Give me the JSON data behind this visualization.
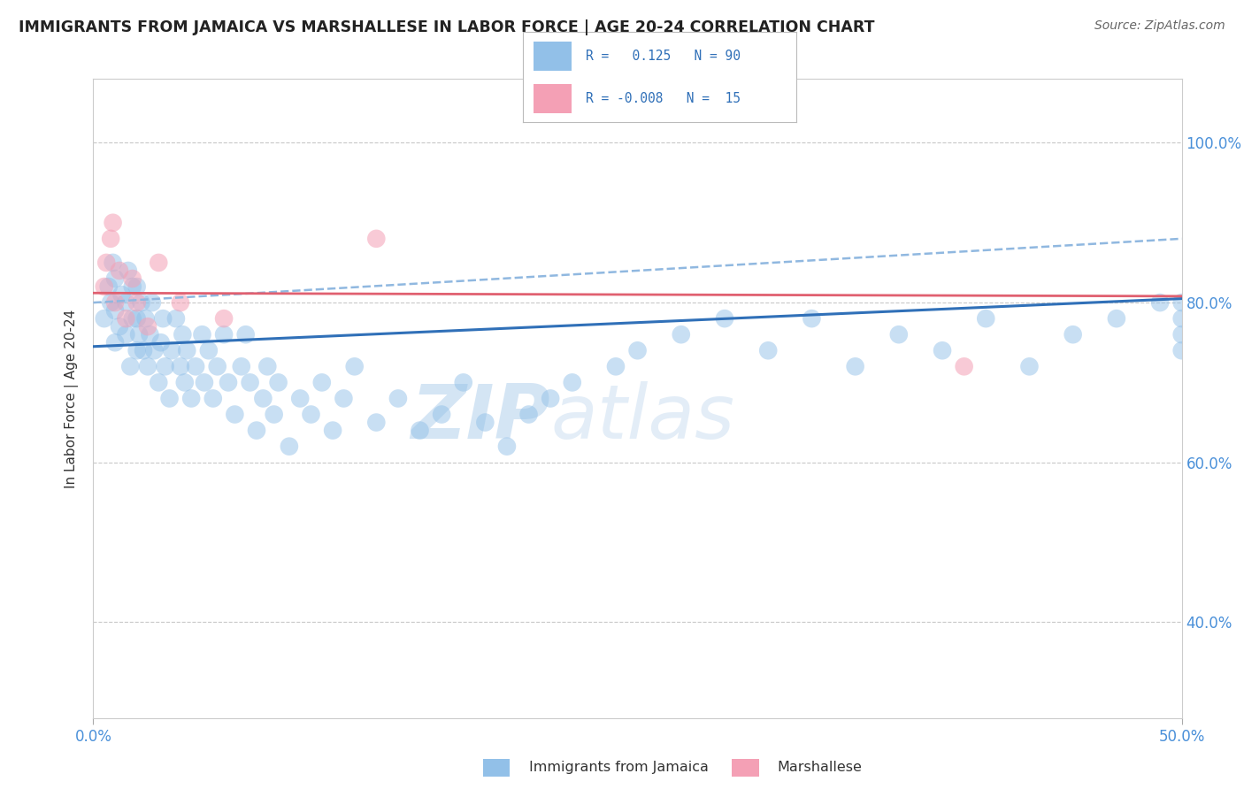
{
  "title": "IMMIGRANTS FROM JAMAICA VS MARSHALLESE IN LABOR FORCE | AGE 20-24 CORRELATION CHART",
  "source": "Source: ZipAtlas.com",
  "ylabel": "In Labor Force | Age 20-24",
  "xlim": [
    0.0,
    0.5
  ],
  "ylim": [
    0.28,
    1.08
  ],
  "jamaica_R": 0.125,
  "jamaica_N": 90,
  "marshallese_R": -0.008,
  "marshallese_N": 15,
  "jamaica_color": "#92C0E8",
  "marshallese_color": "#F4A0B5",
  "jamaica_line_color": "#3070B8",
  "marshallese_line_color": "#E06070",
  "dashed_line_color": "#90B8E0",
  "watermark_zip": "ZIP",
  "watermark_atlas": "atlas",
  "legend_label_jamaica": "Immigrants from Jamaica",
  "legend_label_marshallese": "Marshallese",
  "grid_color": "#C8C8C8",
  "background_color": "#FFFFFF",
  "jamaica_scatter_x": [
    0.005,
    0.007,
    0.008,
    0.009,
    0.01,
    0.01,
    0.01,
    0.012,
    0.013,
    0.015,
    0.015,
    0.016,
    0.017,
    0.018,
    0.018,
    0.02,
    0.02,
    0.02,
    0.021,
    0.022,
    0.023,
    0.024,
    0.025,
    0.026,
    0.027,
    0.028,
    0.03,
    0.031,
    0.032,
    0.033,
    0.035,
    0.036,
    0.038,
    0.04,
    0.041,
    0.042,
    0.043,
    0.045,
    0.047,
    0.05,
    0.051,
    0.053,
    0.055,
    0.057,
    0.06,
    0.062,
    0.065,
    0.068,
    0.07,
    0.072,
    0.075,
    0.078,
    0.08,
    0.083,
    0.085,
    0.09,
    0.095,
    0.1,
    0.105,
    0.11,
    0.115,
    0.12,
    0.13,
    0.14,
    0.15,
    0.16,
    0.17,
    0.18,
    0.19,
    0.2,
    0.21,
    0.22,
    0.24,
    0.25,
    0.27,
    0.29,
    0.31,
    0.33,
    0.35,
    0.37,
    0.39,
    0.41,
    0.43,
    0.45,
    0.47,
    0.49,
    0.5,
    0.5,
    0.5,
    0.5
  ],
  "jamaica_scatter_y": [
    0.78,
    0.82,
    0.8,
    0.85,
    0.75,
    0.79,
    0.83,
    0.77,
    0.81,
    0.76,
    0.8,
    0.84,
    0.72,
    0.78,
    0.82,
    0.74,
    0.78,
    0.82,
    0.76,
    0.8,
    0.74,
    0.78,
    0.72,
    0.76,
    0.8,
    0.74,
    0.7,
    0.75,
    0.78,
    0.72,
    0.68,
    0.74,
    0.78,
    0.72,
    0.76,
    0.7,
    0.74,
    0.68,
    0.72,
    0.76,
    0.7,
    0.74,
    0.68,
    0.72,
    0.76,
    0.7,
    0.66,
    0.72,
    0.76,
    0.7,
    0.64,
    0.68,
    0.72,
    0.66,
    0.7,
    0.62,
    0.68,
    0.66,
    0.7,
    0.64,
    0.68,
    0.72,
    0.65,
    0.68,
    0.64,
    0.66,
    0.7,
    0.65,
    0.62,
    0.66,
    0.68,
    0.7,
    0.72,
    0.74,
    0.76,
    0.78,
    0.74,
    0.78,
    0.72,
    0.76,
    0.74,
    0.78,
    0.72,
    0.76,
    0.78,
    0.8,
    0.76,
    0.78,
    0.74,
    0.8
  ],
  "marshallese_scatter_x": [
    0.005,
    0.006,
    0.008,
    0.009,
    0.01,
    0.012,
    0.015,
    0.018,
    0.02,
    0.025,
    0.03,
    0.04,
    0.06,
    0.13,
    0.4
  ],
  "marshallese_scatter_y": [
    0.82,
    0.85,
    0.88,
    0.9,
    0.8,
    0.84,
    0.78,
    0.83,
    0.8,
    0.77,
    0.85,
    0.8,
    0.78,
    0.88,
    0.72
  ],
  "jamaica_line_x0": 0.0,
  "jamaica_line_y0": 0.745,
  "jamaica_line_x1": 0.5,
  "jamaica_line_y1": 0.805,
  "marshallese_line_x0": 0.0,
  "marshallese_line_y0": 0.812,
  "marshallese_line_x1": 0.5,
  "marshallese_line_y1": 0.808,
  "dashed_line_x0": 0.0,
  "dashed_line_y0": 0.8,
  "dashed_line_x1": 0.5,
  "dashed_line_y1": 0.88,
  "ytick_values": [
    0.4,
    0.6,
    0.8,
    1.0
  ],
  "ytick_labels": [
    "40.0%",
    "60.0%",
    "80.0%",
    "100.0%"
  ]
}
